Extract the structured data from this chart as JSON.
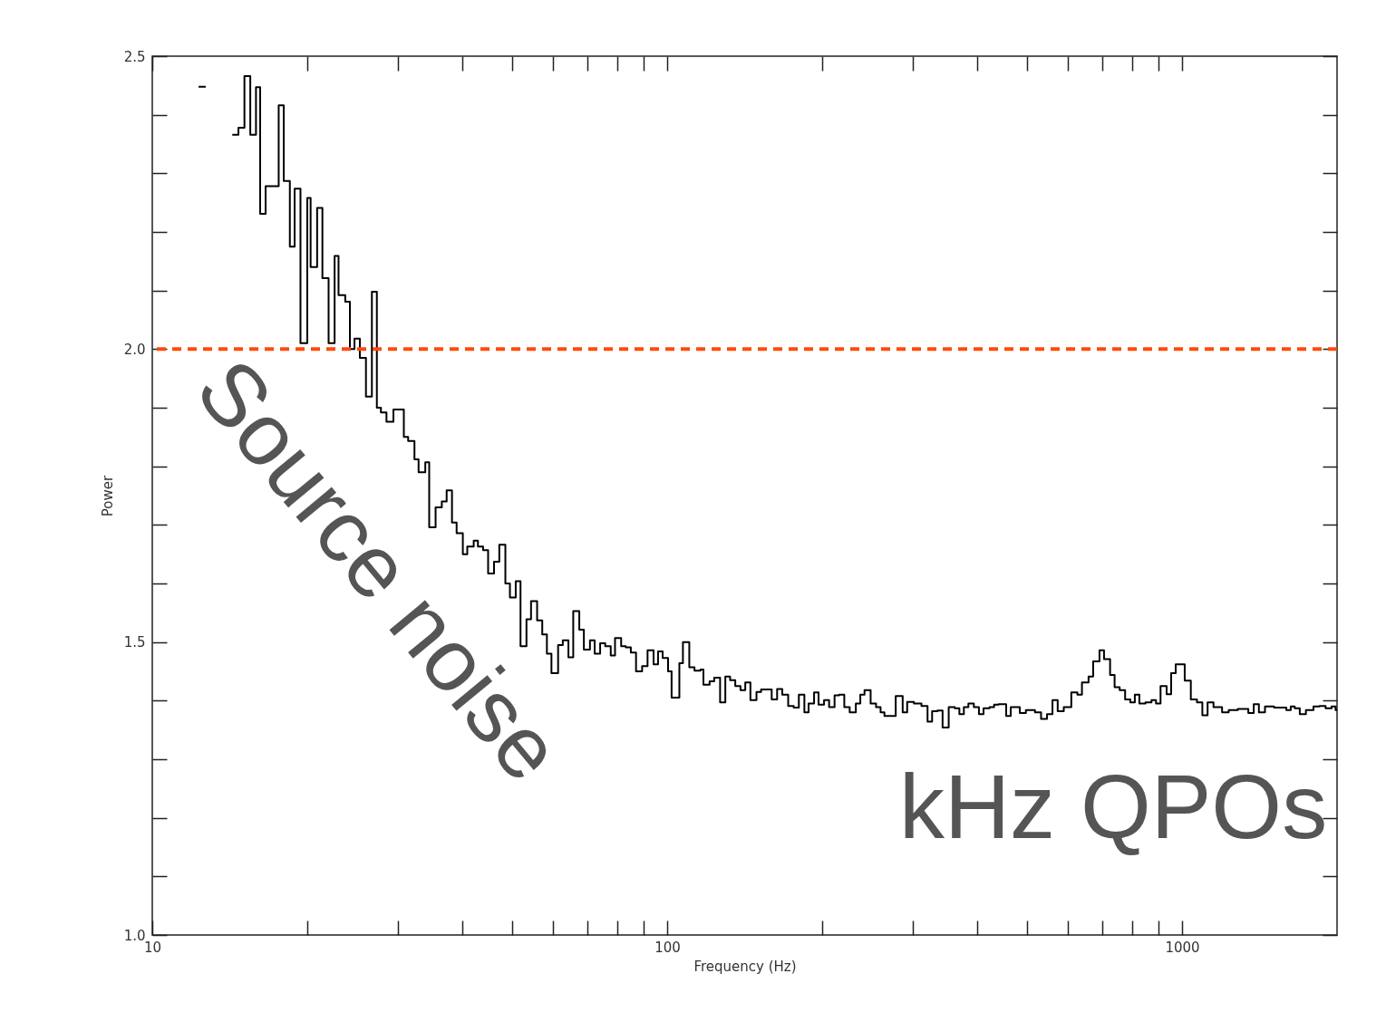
{
  "chart_data": {
    "type": "step",
    "xlabel": "Frequency (Hz)",
    "ylabel": "Power",
    "log": "x",
    "xlim": [
      10,
      2000
    ],
    "ylim": [
      1.0,
      2.5
    ],
    "xticks": [
      10,
      {
        "value": 20,
        "label": null
      },
      {
        "value": 30,
        "label": null
      },
      {
        "value": 40,
        "label": null
      },
      {
        "value": 50,
        "label": null
      },
      {
        "value": 60,
        "label": null
      },
      {
        "value": 70,
        "label": null
      },
      {
        "value": 80,
        "label": null
      },
      {
        "value": 90,
        "label": null
      },
      100,
      {
        "value": 200,
        "label": null
      },
      {
        "value": 300,
        "label": null
      },
      {
        "value": 400,
        "label": null
      },
      {
        "value": 500,
        "label": null
      },
      {
        "value": 600,
        "label": null
      },
      {
        "value": 700,
        "label": null
      },
      {
        "value": 800,
        "label": null
      },
      {
        "value": 900,
        "label": null
      },
      1000
    ],
    "yticks": [
      {
        "value": 1.0,
        "label": "1.0"
      },
      {
        "value": 1.1,
        "label": null
      },
      {
        "value": 1.2,
        "label": null
      },
      {
        "value": 1.3,
        "label": null
      },
      {
        "value": 1.4,
        "label": null
      },
      {
        "value": 1.5,
        "label": "1.5"
      },
      {
        "value": 1.6,
        "label": null
      },
      {
        "value": 1.7,
        "label": null
      },
      {
        "value": 1.8,
        "label": null
      },
      {
        "value": 1.9,
        "label": null
      },
      {
        "value": 2.0,
        "label": "2.0"
      },
      {
        "value": 2.1,
        "label": null
      },
      {
        "value": 2.2,
        "label": null
      },
      {
        "value": 2.3,
        "label": null
      },
      {
        "value": 2.4,
        "label": null
      },
      {
        "value": 2.5,
        "label": "2.5"
      }
    ],
    "x": [
      12.3,
      12.7,
      13.5,
      14.3,
      14.7,
      15.1,
      15.5,
      15.9,
      16.2,
      16.6,
      17.6,
      18.0,
      18.5,
      18.9,
      19.4,
      20.0,
      20.3,
      20.9,
      21.4,
      22.0,
      22.6,
      23.0,
      23.7,
      24.2,
      24.7,
      25.3,
      26.0,
      26.7,
      27.3,
      27.8,
      28.5,
      29.4,
      30.8,
      31.4,
      32.3,
      32.9,
      33.9,
      34.5,
      35.5,
      36.5,
      37.3,
      38.2,
      39.0,
      40.1,
      40.9,
      42.1,
      42.9,
      43.9,
      44.9,
      46.1,
      47.2,
      48.5,
      49.5,
      50.8,
      51.9,
      53.3,
      54.4,
      55.9,
      57.2,
      58.4,
      59.6,
      61.4,
      62.7,
      64.3,
      65.7,
      67.5,
      68.9,
      70.8,
      72.3,
      74.1,
      75.8,
      77.7,
      79.2,
      81.4,
      83.1,
      85.0,
      87.0,
      89.4,
      91.6,
      94.1,
      96.0,
      98.0,
      100.4,
      102.0,
      105.6,
      107.3,
      110.4,
      113.0,
      116.1,
      117.6,
      120.9,
      123.4,
      126.7,
      129.7,
      132.5,
      135.6,
      138.8,
      141.8,
      145.1,
      149.1,
      152.2,
      159.6,
      163.5,
      167.3,
      171.8,
      176.1,
      180.2,
      184.7,
      188.2,
      192.9,
      196.8,
      201.7,
      206.3,
      211.4,
      215.8,
      220.8,
      226.2,
      232.5,
      237.2,
      241.7,
      248.4,
      254.5,
      259.7,
      264.2,
      277.9,
      286.7,
      292.5,
      301.5,
      311.8,
      320.4,
      327.0,
      335.0,
      342.7,
      352.2,
      361.9,
      369.4,
      376.9,
      384.6,
      394.1,
      403.2,
      411.5,
      422.8,
      431.5,
      440.3,
      455.4,
      464.8,
      484.1,
      497.4,
      518.0,
      532.3,
      546.7,
      560.2,
      573.4,
      589.2,
      609.4,
      626.2,
      639.1,
      658.3,
      671.9,
      691.2,
      705.4,
      724.8,
      739.6,
      756.5,
      775.2,
      793.4,
      809.6,
      826.2,
      849.1,
      872.2,
      890.1,
      908.3,
      933.3,
      952.4,
      972.0,
      1012,
      1040,
      1069,
      1095,
      1121,
      1151,
      1196,
      1232,
      1283,
      1345,
      1378,
      1410,
      1449,
      1509,
      1594,
      1626,
      1655,
      1693,
      1740,
      1800,
      1849,
      1900,
      1952,
      1987,
      2000
    ],
    "series": [
      {
        "color": "#000000",
        "values": [
          2.448,
          2.448,
          null,
          2.366,
          2.378,
          2.466,
          2.366,
          2.447,
          2.231,
          2.278,
          2.416,
          2.287,
          2.175,
          2.274,
          2.01,
          2.258,
          2.14,
          2.241,
          2.121,
          2.01,
          2.159,
          2.092,
          2.081,
          2.0,
          2.018,
          1.985,
          1.919,
          2.098,
          1.9,
          1.892,
          1.876,
          1.897,
          1.85,
          1.843,
          1.812,
          1.79,
          1.807,
          1.696,
          1.73,
          1.74,
          1.759,
          1.704,
          1.686,
          1.65,
          1.663,
          1.673,
          1.663,
          1.657,
          1.617,
          1.637,
          1.666,
          1.6,
          1.576,
          1.604,
          1.493,
          1.539,
          1.57,
          1.537,
          1.513,
          1.48,
          1.447,
          1.495,
          1.503,
          1.474,
          1.553,
          1.521,
          1.487,
          1.503,
          1.48,
          1.498,
          1.493,
          1.477,
          1.507,
          1.493,
          1.491,
          1.482,
          1.45,
          1.459,
          1.486,
          1.462,
          1.484,
          1.473,
          1.45,
          1.405,
          1.464,
          1.5,
          1.457,
          1.451,
          1.453,
          1.427,
          1.433,
          1.439,
          1.397,
          1.441,
          1.435,
          1.425,
          1.418,
          1.431,
          1.401,
          1.415,
          1.419,
          1.402,
          1.42,
          1.41,
          1.391,
          1.388,
          1.41,
          1.38,
          1.395,
          1.414,
          1.393,
          1.401,
          1.389,
          1.409,
          1.41,
          1.389,
          1.38,
          1.395,
          1.41,
          1.418,
          1.395,
          1.389,
          1.38,
          1.374,
          1.408,
          1.38,
          1.398,
          1.395,
          1.391,
          1.364,
          1.382,
          1.383,
          1.354,
          1.389,
          1.387,
          1.377,
          1.389,
          1.395,
          1.389,
          1.377,
          1.387,
          1.389,
          1.393,
          1.394,
          1.374,
          1.389,
          1.379,
          1.384,
          1.38,
          1.369,
          1.377,
          1.401,
          1.382,
          1.389,
          1.414,
          1.41,
          1.431,
          1.441,
          1.467,
          1.486,
          1.471,
          1.444,
          1.423,
          1.418,
          1.402,
          1.397,
          1.41,
          1.395,
          1.397,
          1.401,
          1.395,
          1.425,
          1.411,
          1.447,
          1.462,
          1.434,
          1.402,
          1.397,
          1.375,
          1.397,
          1.389,
          1.38,
          1.384,
          1.386,
          1.379,
          1.394,
          1.38,
          1.39,
          1.388,
          1.384,
          1.39,
          1.387,
          1.377,
          1.384,
          1.39,
          1.391,
          1.387,
          1.39,
          1.384,
          1.384
        ]
      }
    ],
    "ref_lines": [
      {
        "axis": "y",
        "value": 2.0,
        "label": null,
        "color": "#ff4a0a",
        "line_style": "dashed"
      }
    ],
    "annotations": [
      "Source noise",
      "kHz QPOs"
    ]
  }
}
